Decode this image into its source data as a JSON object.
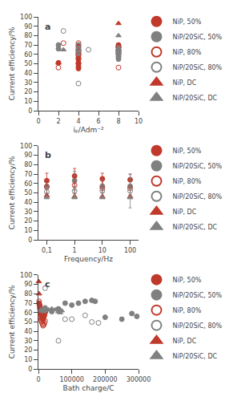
{
  "chart_data": [
    {
      "type": "scatter",
      "annotations": [
        "a"
      ],
      "xlabel": "iₚ/Adm⁻²",
      "ylabel": "Current efficiency/%",
      "xlim": [
        0,
        10
      ],
      "ylim": [
        0,
        100
      ],
      "xticks": [
        0,
        2,
        4,
        6,
        8,
        10
      ],
      "yticks": [
        0,
        10,
        20,
        30,
        40,
        50,
        60,
        70,
        80,
        90,
        100
      ],
      "grid": false,
      "legend": "right",
      "series": [
        {
          "name": "NiP, 50%",
          "color": "#c0392b",
          "marker": "circle",
          "x": [
            2,
            4,
            4,
            4,
            4,
            4,
            4,
            4,
            4,
            8,
            8,
            8,
            8,
            8,
            8,
            8,
            8
          ],
          "values": [
            51,
            45,
            47,
            50,
            51,
            55,
            57,
            59,
            61,
            60,
            61,
            63,
            65,
            67,
            68,
            69,
            70
          ]
        },
        {
          "name": "NiP/20SiC, 50%",
          "color": "#808080",
          "marker": "circle",
          "x": [
            2,
            2,
            4,
            4,
            4,
            4,
            4,
            4,
            4,
            4,
            8,
            8,
            8,
            8,
            8,
            8,
            8,
            8,
            8,
            8
          ],
          "values": [
            66,
            70,
            60,
            62,
            63,
            64,
            65,
            66,
            68,
            70,
            55,
            57,
            58,
            60,
            61,
            62,
            63,
            64,
            65,
            67
          ]
        },
        {
          "name": "NiP, 80%",
          "color": "#c0392b",
          "marker": "circle-open",
          "x": [
            2,
            2.5,
            4,
            4,
            4,
            4,
            4,
            4,
            8,
            8
          ],
          "values": [
            46,
            72,
            50,
            55,
            60,
            64,
            68,
            72,
            46,
            68
          ]
        },
        {
          "name": "NiP/20SiC, 80%",
          "color": "#808080",
          "marker": "circle-open",
          "x": [
            2.5,
            4,
            4,
            4,
            4,
            5,
            8,
            8,
            8
          ],
          "values": [
            85,
            29,
            64,
            65,
            70,
            65,
            63,
            64,
            65
          ]
        },
        {
          "name": "NiP, DC",
          "color": "#c0392b",
          "marker": "triangle-up",
          "x": [
            2,
            8
          ],
          "values": [
            51,
            93
          ]
        },
        {
          "name": "NiP/20SiC, DC",
          "color": "#808080",
          "marker": "triangle-up",
          "x": [
            2.5,
            8
          ],
          "values": [
            65,
            80
          ]
        }
      ]
    },
    {
      "type": "scatter",
      "annotations": [
        "b"
      ],
      "xlabel": "Frequency/Hz",
      "ylabel": "Current efficiency/%",
      "log": "x",
      "xlim": [
        0.05,
        200
      ],
      "ylim": [
        0,
        100
      ],
      "xticks": [
        {
          "value": 0.1,
          "label": "0,1"
        },
        1,
        10,
        100
      ],
      "yticks": [
        0,
        10,
        20,
        30,
        40,
        50,
        60,
        70,
        80,
        90,
        100
      ],
      "grid": false,
      "legend": "right",
      "series": [
        {
          "name": "NiP, 50%",
          "color": "#c0392b",
          "marker": "circle",
          "x": [
            0.1,
            1,
            10,
            100
          ],
          "values": [
            63,
            68,
            65,
            64
          ],
          "yerr": [
            8,
            8,
            6,
            6
          ]
        },
        {
          "name": "NiP/20SiC, 50%",
          "color": "#808080",
          "marker": "circle",
          "x": [
            0.1,
            1,
            10,
            100
          ],
          "values": [
            57,
            63,
            57,
            57
          ],
          "yerr": [
            7,
            10,
            7,
            9
          ]
        },
        {
          "name": "NiP, 80%",
          "color": "#c0392b",
          "marker": "circle-open",
          "x": [
            0.1,
            1,
            10,
            100
          ],
          "values": [
            56,
            58,
            55,
            55
          ],
          "yerr": [
            8,
            9,
            8,
            8
          ]
        },
        {
          "name": "NiP/20SiC, 80%",
          "color": "#808080",
          "marker": "circle-open",
          "x": [
            0.1,
            1,
            10,
            100
          ],
          "values": [
            51,
            52,
            52,
            52
          ],
          "yerr": [
            5,
            5,
            6,
            18
          ]
        },
        {
          "name": "NiP, DC",
          "color": "#c0392b",
          "marker": "triangle-up",
          "x": [
            0.1,
            1,
            10,
            100
          ],
          "values": [
            47,
            46,
            46,
            46
          ],
          "yerr": [
            0,
            0,
            0,
            0
          ]
        },
        {
          "name": "NiP/20SiC, DC",
          "color": "#808080",
          "marker": "triangle-up",
          "x": [
            0.1,
            1,
            10,
            100
          ],
          "values": [
            45,
            45,
            45,
            45
          ],
          "yerr": [
            0,
            0,
            0,
            0
          ]
        }
      ]
    },
    {
      "type": "scatter",
      "annotations": [
        "c"
      ],
      "xlabel": "Bath charge/C",
      "ylabel": "Current efficiency/%",
      "xlim": [
        0,
        300000
      ],
      "ylim": [
        0,
        100
      ],
      "xticks": [
        0,
        100000,
        200000,
        300000
      ],
      "yticks": [
        0,
        10,
        20,
        30,
        40,
        50,
        60,
        70,
        80,
        90,
        100
      ],
      "grid": false,
      "legend": "right",
      "series": [
        {
          "name": "NiP, 50%",
          "color": "#c0392b",
          "marker": "circle",
          "x": [
            2000,
            4000,
            5000,
            6000,
            7000,
            8000,
            10000,
            12000,
            14000,
            15000,
            16000,
            18000,
            20000,
            22000
          ],
          "values": [
            70,
            68,
            65,
            63,
            60,
            58,
            55,
            53,
            52,
            54,
            56,
            57,
            60,
            62
          ]
        },
        {
          "name": "NiP/20SiC, 50%",
          "color": "#808080",
          "marker": "circle",
          "x": [
            20000,
            40000,
            60000,
            80000,
            100000,
            120000,
            140000,
            160000,
            170000,
            200000,
            250000,
            280000,
            295000
          ],
          "values": [
            65,
            61,
            64,
            70,
            68,
            70,
            72,
            73,
            72,
            55,
            53,
            59,
            56
          ]
        },
        {
          "name": "NiP, 80%",
          "color": "#c0392b",
          "marker": "circle-open",
          "x": [
            2000,
            3000,
            4000,
            5000,
            6000,
            7000,
            8000,
            10000,
            12000,
            14000,
            16000,
            18000,
            20000
          ],
          "values": [
            72,
            68,
            65,
            63,
            60,
            55,
            52,
            50,
            48,
            46,
            47,
            49,
            51
          ]
        },
        {
          "name": "NiP/20SiC, 80%",
          "color": "#808080",
          "marker": "circle-open",
          "x": [
            20000,
            60000,
            80000,
            100000,
            140000,
            160000,
            180000
          ],
          "values": [
            86,
            30,
            53,
            53,
            57,
            50,
            49
          ]
        },
        {
          "name": "NiP, DC",
          "color": "#c0392b",
          "marker": "triangle-up",
          "x": [
            1000,
            2000
          ],
          "values": [
            93,
            80
          ]
        },
        {
          "name": "NiP/20SiC, DC",
          "color": "#808080",
          "marker": "triangle-up",
          "x": [
            8000,
            10000,
            15000,
            20000,
            30000,
            40000,
            50000,
            60000,
            65000,
            70000
          ],
          "values": [
            63,
            62,
            61,
            62,
            63,
            64,
            63,
            61,
            60,
            62
          ]
        }
      ]
    }
  ]
}
